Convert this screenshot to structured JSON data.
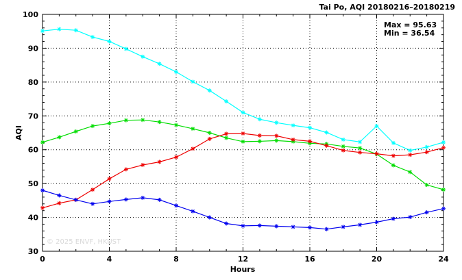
{
  "chart_data": {
    "type": "line",
    "title": "Tai Po, AQI 20180216–20180219",
    "xlabel": "Hours",
    "ylabel": "AQI",
    "xlim": [
      0,
      24
    ],
    "ylim": [
      30,
      100
    ],
    "xticks": [
      0,
      4,
      8,
      12,
      16,
      20,
      24
    ],
    "yticks": [
      30,
      40,
      50,
      60,
      70,
      80,
      90,
      100
    ],
    "grid": true,
    "annotations": {
      "max": "Max = 95.63",
      "min": "Min = 36.54"
    },
    "watermark": "© 2025  ENVF, HKUST",
    "x": [
      0,
      1,
      2,
      3,
      4,
      5,
      6,
      7,
      8,
      9,
      10,
      11,
      12,
      13,
      14,
      15,
      16,
      17,
      18,
      19,
      20,
      21,
      22,
      23,
      24
    ],
    "series": [
      {
        "color": "#00ffff",
        "values": [
          95.1,
          95.63,
          95.3,
          93.3,
          92.0,
          89.8,
          87.5,
          85.4,
          83.0,
          80.1,
          77.5,
          74.3,
          71.0,
          69.0,
          68.0,
          67.2,
          66.5,
          65.1,
          63.0,
          62.3,
          67.0,
          62.0,
          59.8,
          60.8,
          62.2
        ]
      },
      {
        "color": "#00dd00",
        "values": [
          62.2,
          63.7,
          65.4,
          67.0,
          67.8,
          68.7,
          68.8,
          68.2,
          67.3,
          66.2,
          65.0,
          63.5,
          62.4,
          62.5,
          62.7,
          62.4,
          61.9,
          61.7,
          61.0,
          60.5,
          58.7,
          55.4,
          53.4,
          49.6,
          48.2
        ]
      },
      {
        "color": "#ee0000",
        "values": [
          42.8,
          44.2,
          45.2,
          48.2,
          51.4,
          54.2,
          55.5,
          56.4,
          57.8,
          60.3,
          63.2,
          64.7,
          64.8,
          64.2,
          64.1,
          63.0,
          62.5,
          61.2,
          59.8,
          59.2,
          58.8,
          58.2,
          58.5,
          59.3,
          60.6
        ]
      },
      {
        "color": "#0000ee",
        "values": [
          48.0,
          46.5,
          45.2,
          44.0,
          44.7,
          45.3,
          45.8,
          45.2,
          43.5,
          41.8,
          40.0,
          38.2,
          37.5,
          37.6,
          37.4,
          37.2,
          37.0,
          36.54,
          37.2,
          37.8,
          38.6,
          39.6,
          40.1,
          41.5,
          42.6
        ]
      }
    ]
  }
}
